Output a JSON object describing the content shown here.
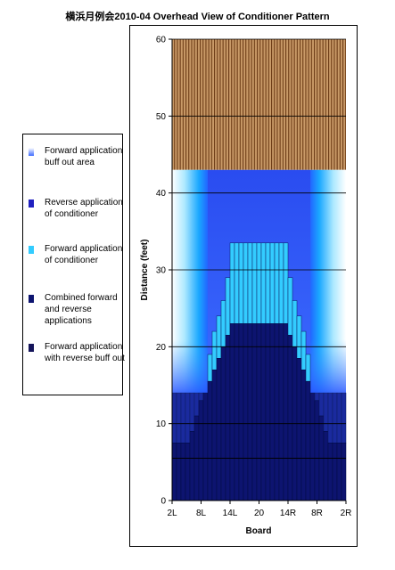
{
  "chart_data": {
    "type": "heatmap",
    "title": "横浜月例会2010-04 Overhead View of Conditioner Pattern",
    "xlabel": "Board",
    "ylabel": "Distance (feet)",
    "ylim": [
      0,
      60
    ],
    "y_ticks": [
      0,
      10,
      20,
      30,
      40,
      50,
      60
    ],
    "x_ticks": [
      "2L",
      "8L",
      "14L",
      "20",
      "14R",
      "8R",
      "2R"
    ],
    "grid": "horizontal",
    "legend_position": "left",
    "colors": {
      "buff_out_area": "#3366ff",
      "reverse": "#1f2fc4",
      "forward": "#33ccff",
      "combined": "#0d1470",
      "forward_reverse_buff": "#0a1565",
      "lane_wood": "#b07a45",
      "lane_stripe": "#6b3a14"
    },
    "legend": [
      {
        "label": "Forward application buff out area",
        "color": "#aac4ff"
      },
      {
        "label": "Reverse application of conditioner",
        "color": "#2020c0"
      },
      {
        "label": "Forward application of conditioner",
        "color": "#33ccff"
      },
      {
        "label": "Combined forward and reverse applications",
        "color": "#0d1470"
      },
      {
        "label": "Forward application with reverse buff out",
        "color": "#14145a"
      }
    ],
    "dry_lane": {
      "start_feet": 43,
      "end_feet": 60
    },
    "combined_profile": [
      {
        "board": 1,
        "feet": 7.5
      },
      {
        "board": 2,
        "feet": 7.5
      },
      {
        "board": 3,
        "feet": 7.5
      },
      {
        "board": 4,
        "feet": 7.5
      },
      {
        "board": 5,
        "feet": 9
      },
      {
        "board": 6,
        "feet": 11
      },
      {
        "board": 7,
        "feet": 13
      },
      {
        "board": 8,
        "feet": 14
      },
      {
        "board": 9,
        "feet": 15.5
      },
      {
        "board": 10,
        "feet": 17
      },
      {
        "board": 11,
        "feet": 18.5
      },
      {
        "board": 12,
        "feet": 20
      },
      {
        "board": 13,
        "feet": 21.5
      },
      {
        "board": 14,
        "feet": 23
      },
      {
        "board": 15,
        "feet": 23
      },
      {
        "board": 16,
        "feet": 23
      },
      {
        "board": 17,
        "feet": 23
      },
      {
        "board": 18,
        "feet": 23
      },
      {
        "board": 19,
        "feet": 23
      },
      {
        "board": 20,
        "feet": 23
      },
      {
        "board": 21,
        "feet": 23
      },
      {
        "board": 22,
        "feet": 23
      },
      {
        "board": 23,
        "feet": 23
      },
      {
        "board": 24,
        "feet": 23
      },
      {
        "board": 25,
        "feet": 23
      },
      {
        "board": 26,
        "feet": 23
      },
      {
        "board": 27,
        "feet": 21.5
      },
      {
        "board": 28,
        "feet": 20
      },
      {
        "board": 29,
        "feet": 18.5
      },
      {
        "board": 30,
        "feet": 17
      },
      {
        "board": 31,
        "feet": 15.5
      },
      {
        "board": 32,
        "feet": 14
      },
      {
        "board": 33,
        "feet": 13
      },
      {
        "board": 34,
        "feet": 11
      },
      {
        "board": 35,
        "feet": 9
      },
      {
        "board": 36,
        "feet": 7.5
      },
      {
        "board": 37,
        "feet": 7.5
      },
      {
        "board": 38,
        "feet": 7.5
      },
      {
        "board": 39,
        "feet": 7.5
      }
    ],
    "forward_profile": [
      {
        "board": 1,
        "feet": 14
      },
      {
        "board": 2,
        "feet": 14
      },
      {
        "board": 3,
        "feet": 14
      },
      {
        "board": 4,
        "feet": 14
      },
      {
        "board": 5,
        "feet": 14
      },
      {
        "board": 6,
        "feet": 14
      },
      {
        "board": 7,
        "feet": 14
      },
      {
        "board": 8,
        "feet": 14
      },
      {
        "board": 9,
        "feet": 19
      },
      {
        "board": 10,
        "feet": 22
      },
      {
        "board": 11,
        "feet": 24
      },
      {
        "board": 12,
        "feet": 26
      },
      {
        "board": 13,
        "feet": 29
      },
      {
        "board": 14,
        "feet": 33.5
      },
      {
        "board": 15,
        "feet": 33.5
      },
      {
        "board": 16,
        "feet": 33.5
      },
      {
        "board": 17,
        "feet": 33.5
      },
      {
        "board": 18,
        "feet": 33.5
      },
      {
        "board": 19,
        "feet": 33.5
      },
      {
        "board": 20,
        "feet": 33.5
      },
      {
        "board": 21,
        "feet": 33.5
      },
      {
        "board": 22,
        "feet": 33.5
      },
      {
        "board": 23,
        "feet": 33.5
      },
      {
        "board": 24,
        "feet": 33.5
      },
      {
        "board": 25,
        "feet": 33.5
      },
      {
        "board": 26,
        "feet": 33.5
      },
      {
        "board": 27,
        "feet": 29
      },
      {
        "board": 28,
        "feet": 26
      },
      {
        "board": 29,
        "feet": 24
      },
      {
        "board": 30,
        "feet": 22
      },
      {
        "board": 31,
        "feet": 19
      },
      {
        "board": 32,
        "feet": 14
      },
      {
        "board": 33,
        "feet": 14
      },
      {
        "board": 34,
        "feet": 14
      },
      {
        "board": 35,
        "feet": 14
      },
      {
        "board": 36,
        "feet": 14
      },
      {
        "board": 37,
        "feet": 14
      },
      {
        "board": 38,
        "feet": 14
      },
      {
        "board": 39,
        "feet": 14
      }
    ],
    "reverse_buff_line_feet": 5.5
  }
}
